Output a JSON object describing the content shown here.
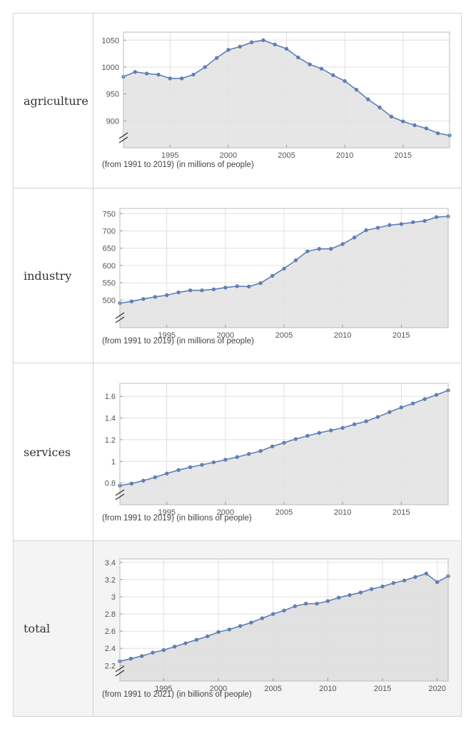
{
  "chart_data": [
    {
      "type": "area",
      "label": "agriculture",
      "caption": "(from 1991 to 2019)  (in millions of people)",
      "x": [
        1991,
        1992,
        1993,
        1994,
        1995,
        1996,
        1997,
        1998,
        1999,
        2000,
        2001,
        2002,
        2003,
        2004,
        2005,
        2006,
        2007,
        2008,
        2009,
        2010,
        2011,
        2012,
        2013,
        2014,
        2015,
        2016,
        2017,
        2018,
        2019
      ],
      "values": [
        982,
        991,
        988,
        986,
        979,
        979,
        986,
        1000,
        1017,
        1032,
        1038,
        1046,
        1050,
        1042,
        1034,
        1018,
        1005,
        997,
        985,
        974,
        958,
        940,
        925,
        908,
        899,
        892,
        886,
        877,
        873
      ],
      "xlim": [
        1991,
        2019
      ],
      "ylim": [
        850,
        1065
      ],
      "xticks": [
        1995,
        2000,
        2005,
        2010,
        2015
      ],
      "yticks": [
        900,
        950,
        1000,
        1050
      ],
      "ytick_labels": [
        "900",
        "950",
        "1000",
        "1050"
      ],
      "axis_break": true,
      "grid": true,
      "color": "#5f7fb5",
      "fill": "#e2e2e2"
    },
    {
      "type": "area",
      "label": "industry",
      "caption": "(from 1991 to 2019)  (in millions of people)",
      "x": [
        1991,
        1992,
        1993,
        1994,
        1995,
        1996,
        1997,
        1998,
        1999,
        2000,
        2001,
        2002,
        2003,
        2004,
        2005,
        2006,
        2007,
        2008,
        2009,
        2010,
        2011,
        2012,
        2013,
        2014,
        2015,
        2016,
        2017,
        2018,
        2019
      ],
      "values": [
        491,
        496,
        503,
        509,
        514,
        522,
        528,
        528,
        531,
        536,
        540,
        539,
        549,
        570,
        591,
        615,
        641,
        648,
        648,
        662,
        681,
        702,
        709,
        717,
        720,
        725,
        729,
        740,
        742
      ],
      "xlim": [
        1991,
        2019
      ],
      "ylim": [
        420,
        765
      ],
      "xticks": [
        1995,
        2000,
        2005,
        2010,
        2015
      ],
      "yticks": [
        500,
        550,
        600,
        650,
        700,
        750
      ],
      "ytick_labels": [
        "500",
        "550",
        "600",
        "650",
        "700",
        "750"
      ],
      "axis_break": true,
      "grid": true,
      "color": "#5f7fb5",
      "fill": "#e2e2e2"
    },
    {
      "type": "area",
      "label": "services",
      "caption": "(from 1991 to 2019)  (in billions of people)",
      "x": [
        1991,
        1992,
        1993,
        1994,
        1995,
        1996,
        1997,
        1998,
        1999,
        2000,
        2001,
        2002,
        2003,
        2004,
        2005,
        2006,
        2007,
        2008,
        2009,
        2010,
        2011,
        2012,
        2013,
        2014,
        2015,
        2016,
        2017,
        2018,
        2019
      ],
      "values": [
        0.776,
        0.795,
        0.822,
        0.853,
        0.888,
        0.92,
        0.946,
        0.968,
        0.991,
        1.015,
        1.04,
        1.068,
        1.096,
        1.138,
        1.172,
        1.206,
        1.236,
        1.263,
        1.286,
        1.309,
        1.342,
        1.37,
        1.41,
        1.455,
        1.498,
        1.535,
        1.575,
        1.614,
        1.655
      ],
      "xlim": [
        1991,
        2019
      ],
      "ylim": [
        0.6,
        1.72
      ],
      "xticks": [
        1995,
        2000,
        2005,
        2010,
        2015
      ],
      "yticks": [
        0.8,
        1.0,
        1.2,
        1.4,
        1.6
      ],
      "ytick_labels": [
        "0.8",
        "1",
        "1.2",
        "1.4",
        "1.6"
      ],
      "axis_break": true,
      "grid": true,
      "color": "#5f7fb5",
      "fill": "#e2e2e2"
    },
    {
      "type": "area",
      "label": "total",
      "caption": "(from 1991 to 2021)  (in billions of people)",
      "x": [
        1991,
        1992,
        1993,
        1994,
        1995,
        1996,
        1997,
        1998,
        1999,
        2000,
        2001,
        2002,
        2003,
        2004,
        2005,
        2006,
        2007,
        2008,
        2009,
        2010,
        2011,
        2012,
        2013,
        2014,
        2015,
        2016,
        2017,
        2018,
        2019,
        2020,
        2021
      ],
      "values": [
        2.25,
        2.28,
        2.31,
        2.35,
        2.38,
        2.42,
        2.46,
        2.5,
        2.54,
        2.59,
        2.62,
        2.66,
        2.7,
        2.75,
        2.8,
        2.84,
        2.89,
        2.92,
        2.92,
        2.95,
        2.99,
        3.02,
        3.05,
        3.09,
        3.12,
        3.16,
        3.19,
        3.23,
        3.27,
        3.17,
        3.24
      ],
      "xlim": [
        1991,
        2021
      ],
      "ylim": [
        2.02,
        3.44
      ],
      "xticks": [
        1995,
        2000,
        2005,
        2010,
        2015,
        2020
      ],
      "yticks": [
        2.2,
        2.4,
        2.6,
        2.8,
        3.0,
        3.2,
        3.4
      ],
      "ytick_labels": [
        "2.2",
        "2.4",
        "2.6",
        "2.8",
        "3",
        "3.2",
        "3.4"
      ],
      "axis_break": true,
      "grid": true,
      "color": "#5f7fb5",
      "fill": "#dcdcdc"
    }
  ]
}
